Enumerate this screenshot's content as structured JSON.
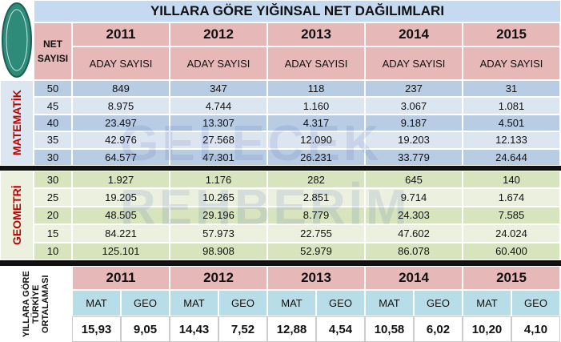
{
  "title": "YILLARA GÖRE YIĞINSAL NET DAĞILIMLARI",
  "net_header": "NET SAYISI",
  "years": [
    "2011",
    "2012",
    "2013",
    "2014",
    "2015"
  ],
  "column_headers": [
    "ADAY SAYISI",
    "ADAY SAYISI",
    "ADAY SAYISI",
    "ADAY SAYISI",
    "ADAY SAYISI"
  ],
  "watermark": "GELECEK REHBERİM",
  "sections": [
    {
      "label": "MATEMATİK",
      "rows": [
        {
          "net": "50",
          "counts": [
            "849",
            "347",
            "118",
            "237",
            "31"
          ]
        },
        {
          "net": "45",
          "counts": [
            "8.975",
            "4.744",
            "1.160",
            "3.067",
            "1.081"
          ]
        },
        {
          "net": "40",
          "counts": [
            "23.497",
            "13.307",
            "4.317",
            "9.187",
            "4.501"
          ]
        },
        {
          "net": "35",
          "counts": [
            "42.976",
            "27.568",
            "12.090",
            "19.203",
            "12.133"
          ]
        },
        {
          "net": "30",
          "counts": [
            "64.577",
            "47.301",
            "26.231",
            "33.779",
            "24.644"
          ]
        }
      ]
    },
    {
      "label": "GEOMETRİ",
      "rows": [
        {
          "net": "30",
          "counts": [
            "1.927",
            "1.176",
            "282",
            "645",
            "140"
          ]
        },
        {
          "net": "25",
          "counts": [
            "19.205",
            "10.265",
            "2.851",
            "9.714",
            "1.674"
          ]
        },
        {
          "net": "20",
          "counts": [
            "48.505",
            "29.196",
            "8.779",
            "24.303",
            "7.585"
          ]
        },
        {
          "net": "15",
          "counts": [
            "84.221",
            "57.973",
            "22.755",
            "47.602",
            "24.024"
          ]
        },
        {
          "net": "10",
          "counts": [
            "125.101",
            "98.908",
            "52.979",
            "86.078",
            "60.400"
          ]
        }
      ]
    }
  ],
  "averages": {
    "label": "YILLARA GÖRE TÜRKİYE ORTALAMASI",
    "years": [
      "2011",
      "2012",
      "2013",
      "2014",
      "2015"
    ],
    "subjects": [
      [
        "MAT",
        "GEO"
      ],
      [
        "MAT",
        "GEO"
      ],
      [
        "MAT",
        "GEO"
      ],
      [
        "MAT",
        "GEO"
      ],
      [
        "MAT",
        "GEO"
      ]
    ],
    "values": [
      [
        "15,93",
        "9,05"
      ],
      [
        "14,43",
        "7,52"
      ],
      [
        "12,88",
        "4,54"
      ],
      [
        "10,58",
        "6,02"
      ],
      [
        "10,20",
        "4,10"
      ]
    ]
  }
}
